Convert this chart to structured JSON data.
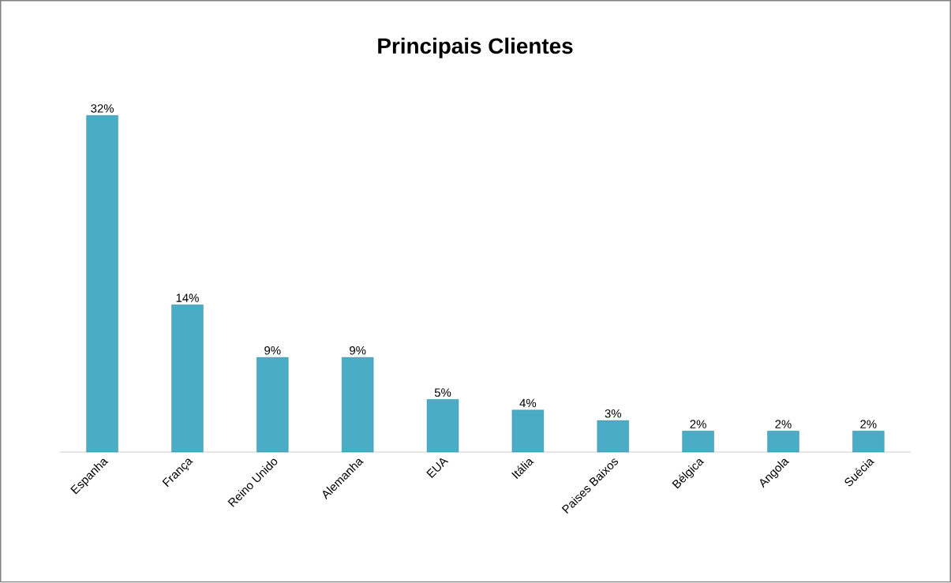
{
  "chart_data": {
    "type": "bar",
    "title": "Principais  Clientes",
    "categories": [
      "Espanha",
      "França",
      "Reino Unido",
      "Alemanha",
      "EUA",
      "Itália",
      "Paises Baixos",
      "Bélgica",
      "Angola",
      "Suécia"
    ],
    "values": [
      32,
      14,
      9,
      9,
      5,
      4,
      3,
      2,
      2,
      2
    ],
    "value_labels": [
      "32%",
      "14%",
      "9%",
      "9%",
      "5%",
      "4%",
      "3%",
      "2%",
      "2%",
      "2%"
    ],
    "color": "#4bacc6"
  }
}
